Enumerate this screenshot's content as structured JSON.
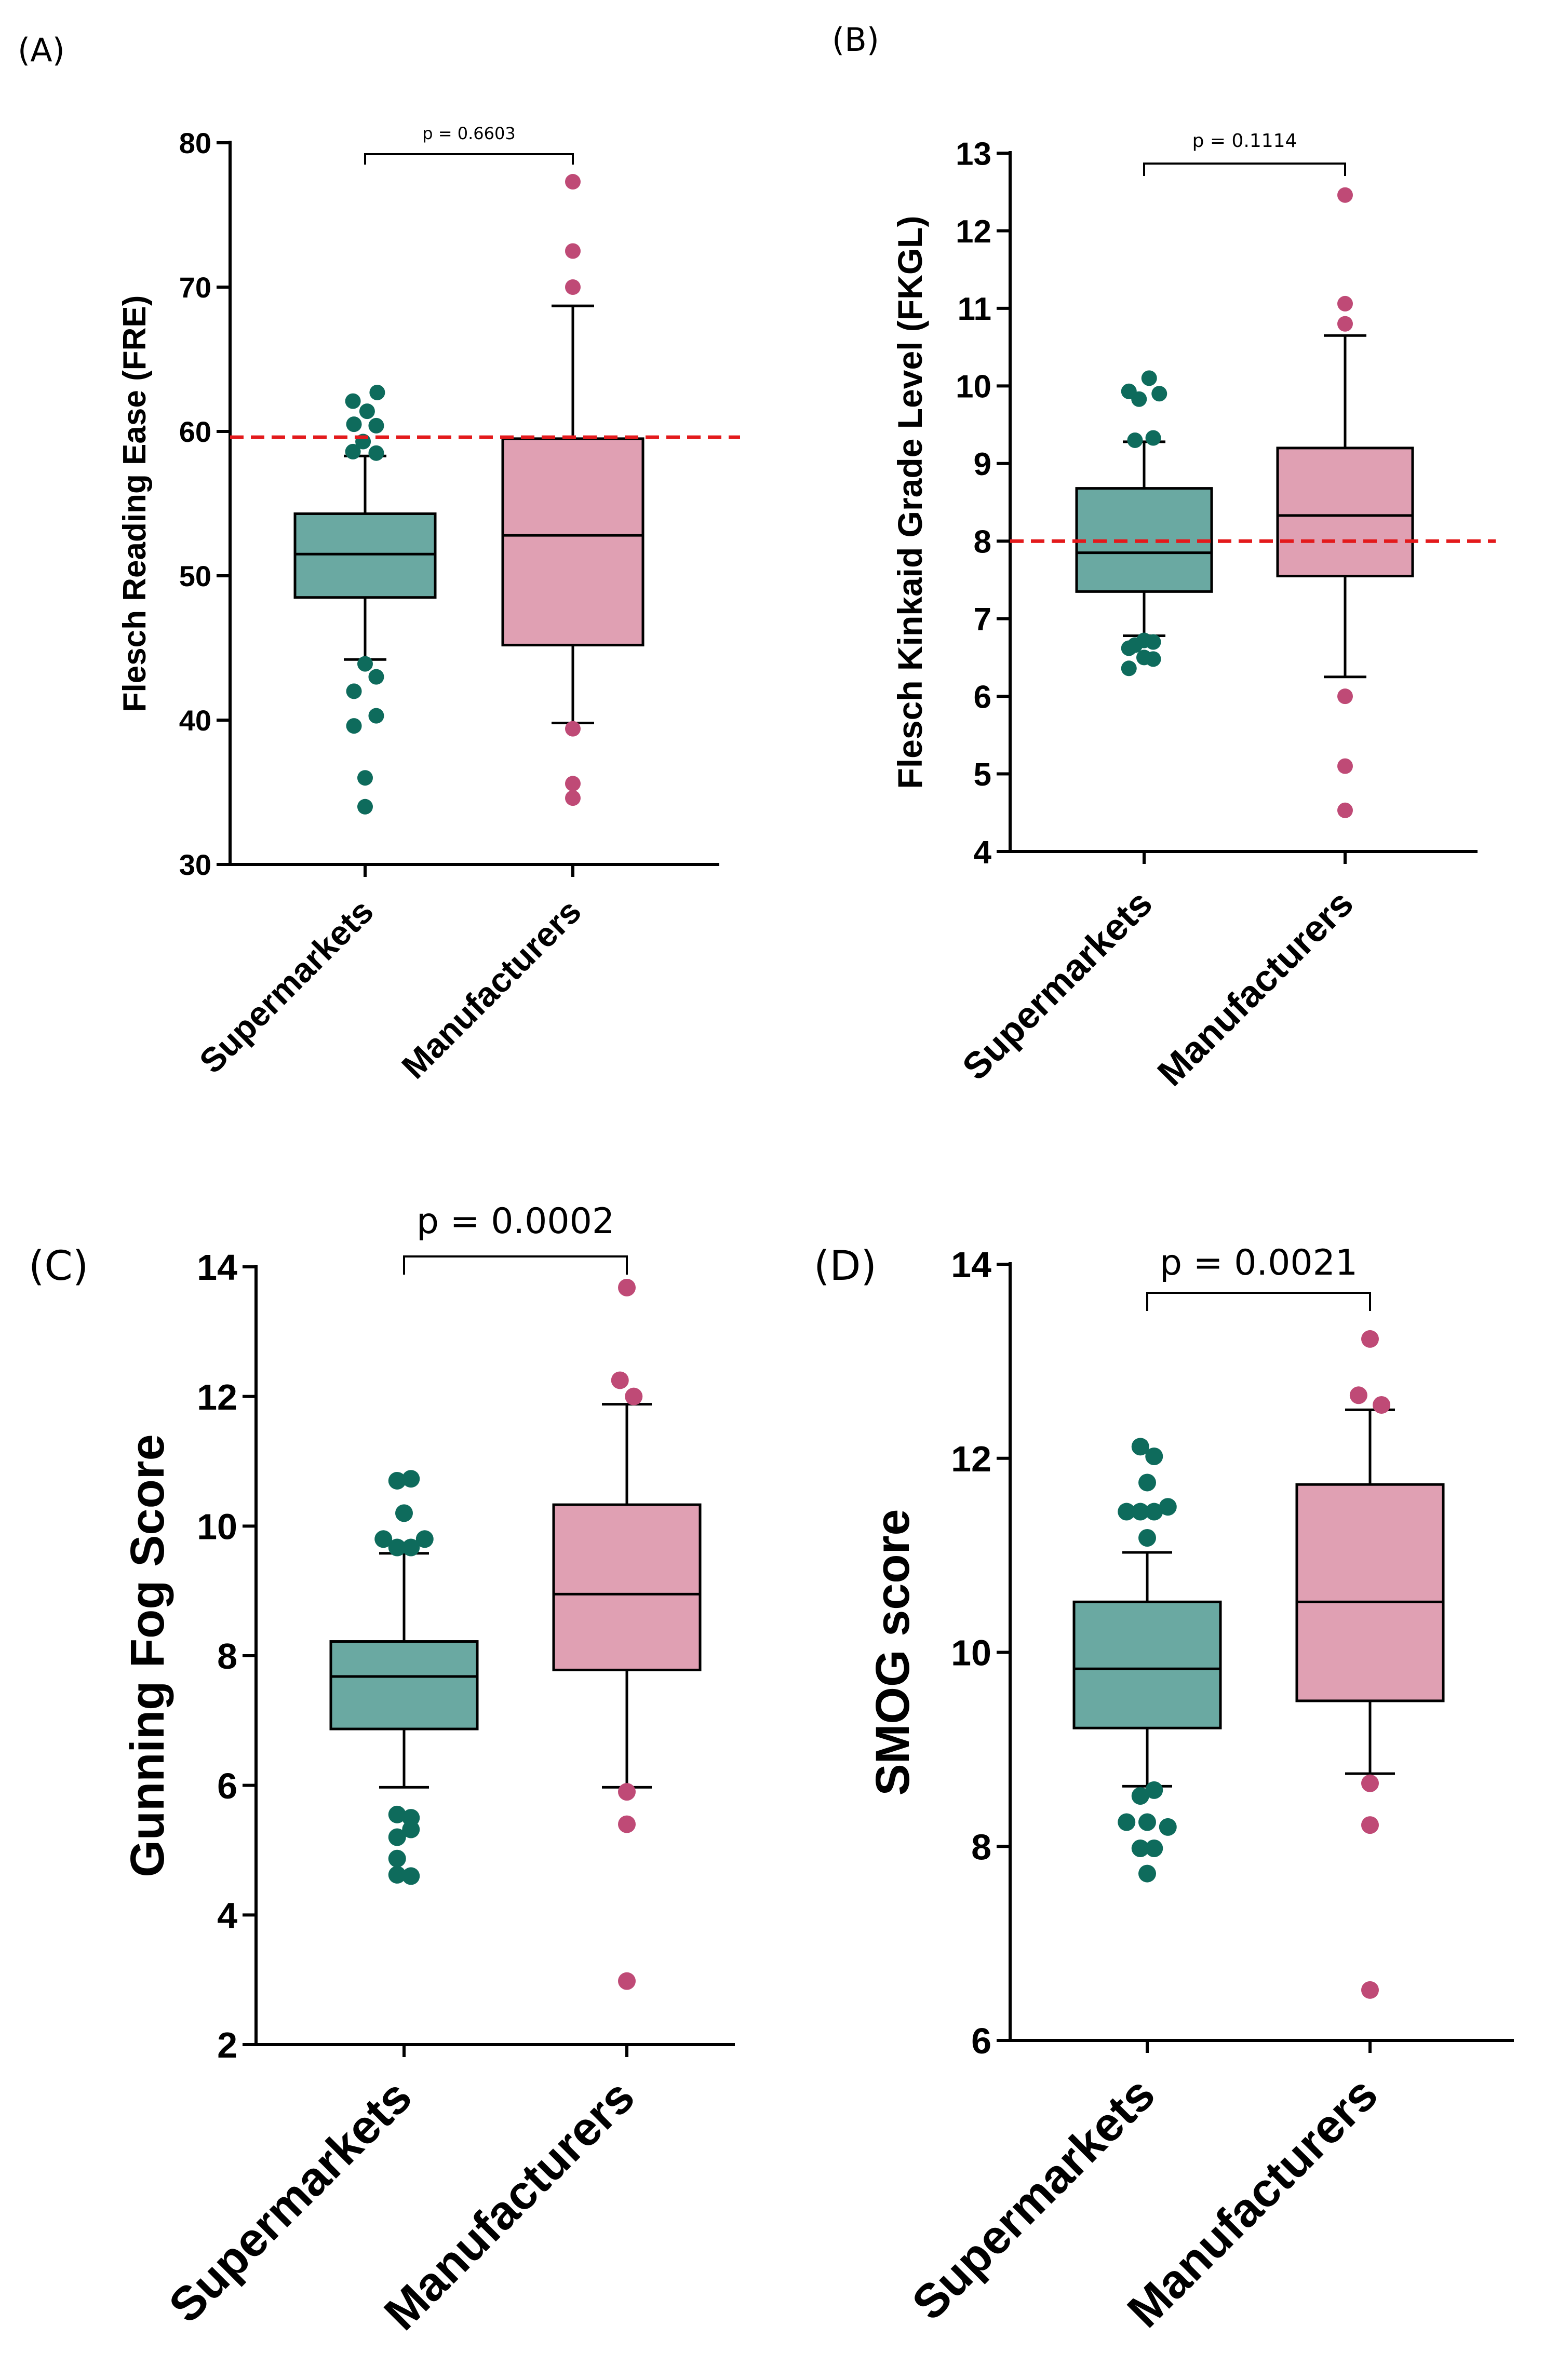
{
  "chart_data": [
    {
      "panel": "(A)",
      "type": "box",
      "ylabel": "Flesch Reading Ease (FRE)",
      "ylim": [
        30,
        80
      ],
      "yticks": [
        30,
        40,
        50,
        60,
        70,
        80
      ],
      "categories": [
        "Supermarkets",
        "Manufacturers"
      ],
      "reference_line": 59.6,
      "p_value": "p = 0.6603",
      "groups": [
        {
          "name": "Supermarkets",
          "color": "#6aa9a2",
          "point_color": "#0e6b5c",
          "q1": 48.5,
          "median": 51.5,
          "q3": 54.3,
          "whisker_low": 44.2,
          "whisker_high": 58.3,
          "outliers": [
            {
              "value": 62.7,
              "offset": 0.6
            },
            {
              "value": 62.1,
              "offset": -0.6
            },
            {
              "value": 61.4,
              "offset": 0.1
            },
            {
              "value": 60.5,
              "offset": -0.55
            },
            {
              "value": 60.4,
              "offset": 0.55
            },
            {
              "value": 59.3,
              "offset": -0.1
            },
            {
              "value": 58.6,
              "offset": -0.6
            },
            {
              "value": 58.5,
              "offset": 0.55
            },
            {
              "value": 43.9,
              "offset": 0.0
            },
            {
              "value": 43.0,
              "offset": 0.55
            },
            {
              "value": 42.0,
              "offset": -0.55
            },
            {
              "value": 40.3,
              "offset": 0.55
            },
            {
              "value": 39.6,
              "offset": -0.55
            },
            {
              "value": 36.0,
              "offset": 0.0
            },
            {
              "value": 34.0,
              "offset": 0.0
            }
          ]
        },
        {
          "name": "Manufacturers",
          "color": "#e0a0b3",
          "point_color": "#bf4a76",
          "q1": 45.2,
          "median": 52.8,
          "q3": 59.5,
          "whisker_low": 39.8,
          "whisker_high": 68.7,
          "outliers": [
            {
              "value": 77.3,
              "offset": 0.0
            },
            {
              "value": 72.5,
              "offset": 0.0
            },
            {
              "value": 70.0,
              "offset": 0.0
            },
            {
              "value": 39.4,
              "offset": 0.0
            },
            {
              "value": 35.6,
              "offset": 0.0
            },
            {
              "value": 34.6,
              "offset": 0.0
            }
          ]
        }
      ]
    },
    {
      "panel": "(B)",
      "type": "box",
      "ylabel": "Flesch Kinkaid Grade Level (FKGL)",
      "ylim": [
        4,
        13
      ],
      "yticks": [
        4,
        5,
        6,
        7,
        8,
        9,
        10,
        11,
        12,
        13
      ],
      "categories": [
        "Supermarkets",
        "Manufacturers"
      ],
      "reference_line": 8.0,
      "p_value": "p = 0.1114",
      "groups": [
        {
          "name": "Supermarkets",
          "color": "#6aa9a2",
          "point_color": "#0e6b5c",
          "q1": 7.35,
          "median": 7.85,
          "q3": 8.68,
          "whisker_low": 6.78,
          "whisker_high": 9.28,
          "outliers": [
            {
              "value": 10.1,
              "offset": 0.25
            },
            {
              "value": 9.93,
              "offset": -0.75
            },
            {
              "value": 9.9,
              "offset": 0.75
            },
            {
              "value": 9.83,
              "offset": -0.25
            },
            {
              "value": 9.33,
              "offset": 0.45
            },
            {
              "value": 9.3,
              "offset": -0.45
            },
            {
              "value": 6.72,
              "offset": 0.0
            },
            {
              "value": 6.7,
              "offset": 0.45
            },
            {
              "value": 6.66,
              "offset": -0.45
            },
            {
              "value": 6.62,
              "offset": -0.75
            },
            {
              "value": 6.5,
              "offset": 0.0
            },
            {
              "value": 6.48,
              "offset": 0.45
            },
            {
              "value": 6.36,
              "offset": -0.75
            }
          ]
        },
        {
          "name": "Manufacturers",
          "color": "#e0a0b3",
          "point_color": "#bf4a76",
          "q1": 7.55,
          "median": 8.33,
          "q3": 9.2,
          "whisker_low": 6.25,
          "whisker_high": 10.65,
          "outliers": [
            {
              "value": 12.46,
              "offset": 0.0
            },
            {
              "value": 11.06,
              "offset": 0.0
            },
            {
              "value": 10.8,
              "offset": 0.0
            },
            {
              "value": 6.0,
              "offset": 0.0
            },
            {
              "value": 5.1,
              "offset": 0.0
            },
            {
              "value": 4.53,
              "offset": 0.0
            }
          ]
        }
      ]
    },
    {
      "panel": "(C)",
      "type": "box",
      "ylabel": "Gunning Fog Score",
      "ylim": [
        2,
        14
      ],
      "yticks": [
        2,
        4,
        6,
        8,
        10,
        12,
        14
      ],
      "categories": [
        "Supermarkets",
        "Manufacturers"
      ],
      "reference_line": null,
      "p_value": "p = 0.0002",
      "groups": [
        {
          "name": "Supermarkets",
          "color": "#6aa9a2",
          "point_color": "#0e6b5c",
          "q1": 6.87,
          "median": 7.68,
          "q3": 8.22,
          "whisker_low": 5.97,
          "whisker_high": 9.58,
          "outliers": [
            {
              "value": 10.73,
              "offset": 0.3
            },
            {
              "value": 10.7,
              "offset": -0.3
            },
            {
              "value": 10.2,
              "offset": 0.0
            },
            {
              "value": 9.8,
              "offset": -0.9
            },
            {
              "value": 9.8,
              "offset": 0.9
            },
            {
              "value": 9.67,
              "offset": -0.3
            },
            {
              "value": 9.67,
              "offset": 0.3
            },
            {
              "value": 5.55,
              "offset": -0.3
            },
            {
              "value": 5.5,
              "offset": 0.3
            },
            {
              "value": 5.32,
              "offset": 0.3
            },
            {
              "value": 5.2,
              "offset": -0.3
            },
            {
              "value": 4.87,
              "offset": -0.3
            },
            {
              "value": 4.62,
              "offset": -0.3
            },
            {
              "value": 4.6,
              "offset": 0.3
            }
          ]
        },
        {
          "name": "Manufacturers",
          "color": "#e0a0b3",
          "point_color": "#bf4a76",
          "q1": 7.78,
          "median": 8.95,
          "q3": 10.33,
          "whisker_low": 5.97,
          "whisker_high": 11.88,
          "outliers": [
            {
              "value": 13.68,
              "offset": 0.0
            },
            {
              "value": 12.25,
              "offset": -0.3
            },
            {
              "value": 12.0,
              "offset": 0.3
            },
            {
              "value": 5.9,
              "offset": 0.0
            },
            {
              "value": 5.4,
              "offset": 0.0
            },
            {
              "value": 2.98,
              "offset": 0.0
            }
          ]
        }
      ]
    },
    {
      "panel": "(D)",
      "type": "box",
      "ylabel": "SMOG score",
      "ylim": [
        6,
        14
      ],
      "yticks": [
        6,
        8,
        10,
        12,
        14
      ],
      "categories": [
        "Supermarkets",
        "Manufacturers"
      ],
      "reference_line": null,
      "p_value": "p = 0.0021",
      "groups": [
        {
          "name": "Supermarkets",
          "color": "#6aa9a2",
          "point_color": "#0e6b5c",
          "q1": 9.22,
          "median": 9.83,
          "q3": 10.52,
          "whisker_low": 8.62,
          "whisker_high": 11.03,
          "outliers": [
            {
              "value": 12.12,
              "offset": -0.3
            },
            {
              "value": 12.02,
              "offset": 0.3
            },
            {
              "value": 11.75,
              "offset": 0.0
            },
            {
              "value": 11.5,
              "offset": 0.9
            },
            {
              "value": 11.45,
              "offset": -0.9
            },
            {
              "value": 11.45,
              "offset": -0.3
            },
            {
              "value": 11.45,
              "offset": 0.3
            },
            {
              "value": 11.18,
              "offset": 0.0
            },
            {
              "value": 8.58,
              "offset": 0.3
            },
            {
              "value": 8.52,
              "offset": -0.3
            },
            {
              "value": 8.25,
              "offset": -0.9
            },
            {
              "value": 8.25,
              "offset": 0.0
            },
            {
              "value": 8.2,
              "offset": 0.9
            },
            {
              "value": 7.98,
              "offset": -0.3
            },
            {
              "value": 7.98,
              "offset": 0.3
            },
            {
              "value": 7.72,
              "offset": 0.0
            }
          ]
        },
        {
          "name": "Manufacturers",
          "color": "#e0a0b3",
          "point_color": "#bf4a76",
          "q1": 9.5,
          "median": 10.52,
          "q3": 11.73,
          "whisker_low": 8.75,
          "whisker_high": 12.5,
          "outliers": [
            {
              "value": 13.23,
              "offset": 0.0
            },
            {
              "value": 12.65,
              "offset": -0.5
            },
            {
              "value": 12.55,
              "offset": 0.5
            },
            {
              "value": 8.65,
              "offset": 0.0
            },
            {
              "value": 8.22,
              "offset": 0.0
            },
            {
              "value": 6.52,
              "offset": 0.0
            }
          ]
        }
      ]
    }
  ]
}
